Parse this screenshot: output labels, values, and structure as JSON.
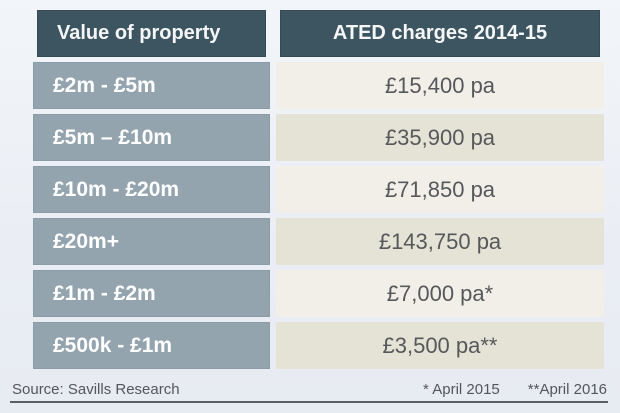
{
  "table": {
    "header": {
      "col1": "Value of property",
      "col2": "ATED charges 2014-15"
    },
    "rows": [
      {
        "band": "£2m - £5m",
        "charge": "£15,400 pa"
      },
      {
        "band": "£5m – £10m",
        "charge": "£35,900 pa"
      },
      {
        "band": "£10m - £20m",
        "charge": "£71,850 pa"
      },
      {
        "band": "£20m+",
        "charge": "£143,750 pa"
      },
      {
        "band": "£1m - £2m",
        "charge": "£7,000 pa*"
      },
      {
        "band": "£500k - £1m",
        "charge": "£3,500 pa**"
      }
    ]
  },
  "footer": {
    "source": "Source: Savills Research",
    "note1": "* April 2015",
    "note2": "**April 2016"
  },
  "colors": {
    "header_bg": "#3d5561",
    "band_bg": "#93a4af",
    "charge_bg_light": "#f1efe8",
    "charge_bg_dark": "#e5e2d6",
    "charge_text": "#57585b",
    "page_bg": "#ebeff5",
    "footer_rule": "#5a5f66"
  },
  "chart_data": {
    "type": "table",
    "title": "ATED charges 2014-15",
    "columns": [
      "Value of property",
      "ATED charges 2014-15"
    ],
    "rows": [
      [
        "£2m - £5m",
        "£15,400 pa"
      ],
      [
        "£5m – £10m",
        "£35,900 pa"
      ],
      [
        "£10m - £20m",
        "£71,850 pa"
      ],
      [
        "£20m+",
        "£143,750 pa"
      ],
      [
        "£1m - £2m",
        "£7,000 pa*"
      ],
      [
        "£500k - £1m",
        "£3,500 pa**"
      ]
    ],
    "charges_numeric_gbp": [
      15400,
      35900,
      71850,
      143750,
      7000,
      3500
    ],
    "footnotes": [
      "* April 2015",
      "**April 2016"
    ],
    "source": "Source: Savills Research"
  }
}
